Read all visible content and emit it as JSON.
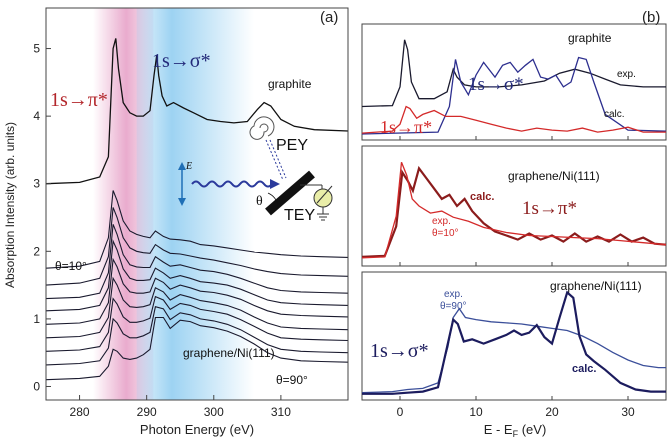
{
  "colors": {
    "dark": "#1a1a2e",
    "navy": "#23226a",
    "blue_exp": "#3b4f9a",
    "red": "#d42a2a",
    "darkred": "#8b1c1c",
    "pink": "#e7a2c8",
    "sky": "#8ccbf0",
    "gray_axis": "#444444",
    "grid": "#888888"
  },
  "chart_data": [
    {
      "id": "a",
      "type": "line",
      "panel_label": "(a)",
      "xlabel": "Photon Energy (eV)",
      "ylabel": "Absorption Intensity (arb. units)",
      "xlim": [
        275,
        320
      ],
      "ylim": [
        -0.2,
        5.6
      ],
      "xticks": [
        280,
        290,
        300,
        310
      ],
      "yticks": [
        0,
        1,
        2,
        3,
        4,
        5
      ],
      "shaded_regions": [
        {
          "name": "pi-star-region",
          "x": [
            282.0,
            291.0
          ],
          "color": "#e7a2c8"
        },
        {
          "name": "sigma-star-region",
          "x": [
            288.5,
            306.0
          ],
          "color": "#8ccbf0"
        }
      ],
      "graphite_curve": {
        "name": "graphite",
        "x": [
          275,
          280,
          283,
          284.3,
          285.0,
          285.4,
          285.8,
          286.5,
          287.5,
          288.5,
          289.5,
          290.5,
          291.1,
          291.5,
          291.8,
          292.3,
          293.0,
          294.0,
          295.5,
          297.0,
          299.0,
          301.0,
          303.0,
          305.0,
          306.5,
          307.5,
          308.5,
          310.0,
          312.0,
          315.0,
          320.0
        ],
        "y": [
          3.0,
          3.02,
          3.1,
          3.4,
          5.0,
          5.15,
          4.7,
          4.2,
          4.05,
          4.0,
          4.0,
          4.08,
          4.6,
          4.9,
          4.6,
          4.3,
          4.15,
          4.2,
          4.12,
          4.05,
          3.95,
          3.92,
          3.9,
          3.92,
          4.1,
          4.2,
          4.15,
          3.95,
          3.85,
          3.8,
          3.78
        ]
      },
      "series_x": [
        275,
        280,
        283,
        284.3,
        285.0,
        285.6,
        286.5,
        287.5,
        288.5,
        289.5,
        290.5,
        291.3,
        292.5,
        293.5,
        295.0,
        296.5,
        298.0,
        300.0,
        302.0,
        304.0,
        306.0,
        308.0,
        310.0,
        313.0,
        316.0,
        320.0
      ],
      "angle_series": [
        {
          "name": "theta-10",
          "y": [
            1.75,
            1.78,
            1.85,
            2.2,
            2.9,
            2.75,
            2.45,
            2.3,
            2.25,
            2.22,
            2.2,
            2.3,
            2.22,
            2.18,
            2.17,
            2.15,
            2.1,
            2.08,
            2.05,
            2.02,
            1.99,
            1.97,
            1.95,
            1.93,
            1.92,
            1.91
          ]
        },
        {
          "name": "theta-20",
          "y": [
            1.5,
            1.53,
            1.6,
            1.92,
            2.65,
            2.5,
            2.2,
            2.05,
            2.0,
            1.98,
            1.97,
            2.1,
            2.02,
            1.97,
            1.96,
            1.93,
            1.9,
            1.87,
            1.83,
            1.79,
            1.74,
            1.7,
            1.67,
            1.65,
            1.64,
            1.63
          ]
        },
        {
          "name": "theta-30",
          "y": [
            1.3,
            1.32,
            1.38,
            1.68,
            2.4,
            2.25,
            1.95,
            1.8,
            1.77,
            1.76,
            1.76,
            1.92,
            1.84,
            1.78,
            1.8,
            1.76,
            1.72,
            1.7,
            1.66,
            1.6,
            1.53,
            1.46,
            1.42,
            1.4,
            1.39,
            1.38
          ]
        },
        {
          "name": "theta-40",
          "y": [
            1.12,
            1.14,
            1.2,
            1.46,
            2.15,
            2.02,
            1.74,
            1.6,
            1.57,
            1.57,
            1.58,
            1.75,
            1.68,
            1.6,
            1.64,
            1.6,
            1.55,
            1.53,
            1.5,
            1.44,
            1.36,
            1.28,
            1.24,
            1.22,
            1.21,
            1.2
          ]
        },
        {
          "name": "theta-50",
          "y": [
            0.92,
            0.94,
            1.0,
            1.24,
            1.88,
            1.77,
            1.52,
            1.4,
            1.38,
            1.38,
            1.4,
            1.6,
            1.54,
            1.44,
            1.5,
            1.46,
            1.41,
            1.39,
            1.35,
            1.29,
            1.2,
            1.12,
            1.07,
            1.05,
            1.04,
            1.03
          ]
        },
        {
          "name": "theta-60",
          "y": [
            0.72,
            0.74,
            0.8,
            1.02,
            1.6,
            1.5,
            1.28,
            1.18,
            1.17,
            1.18,
            1.21,
            1.46,
            1.4,
            1.28,
            1.36,
            1.32,
            1.27,
            1.24,
            1.2,
            1.13,
            1.03,
            0.94,
            0.88,
            0.86,
            0.85,
            0.84
          ]
        },
        {
          "name": "theta-70",
          "y": [
            0.52,
            0.54,
            0.59,
            0.8,
            1.3,
            1.22,
            1.03,
            0.95,
            0.95,
            0.97,
            1.01,
            1.33,
            1.28,
            1.14,
            1.23,
            1.2,
            1.14,
            1.11,
            1.07,
            0.99,
            0.89,
            0.79,
            0.72,
            0.7,
            0.69,
            0.68
          ]
        },
        {
          "name": "theta-80",
          "y": [
            0.32,
            0.34,
            0.38,
            0.57,
            1.0,
            0.94,
            0.78,
            0.72,
            0.72,
            0.75,
            0.8,
            1.18,
            1.15,
            0.99,
            1.09,
            1.06,
            1.0,
            0.97,
            0.92,
            0.84,
            0.73,
            0.62,
            0.55,
            0.52,
            0.51,
            0.5
          ]
        },
        {
          "name": "theta-90",
          "y": [
            0.1,
            0.12,
            0.15,
            0.3,
            0.55,
            0.52,
            0.42,
            0.4,
            0.42,
            0.47,
            0.55,
            1.02,
            1.02,
            0.86,
            0.98,
            0.96,
            0.9,
            0.87,
            0.82,
            0.74,
            0.63,
            0.5,
            0.42,
            0.38,
            0.37,
            0.36
          ]
        }
      ],
      "labels": {
        "graphite": "graphite",
        "pi_transition": "1s→π*",
        "sigma_transition": "1s→σ*",
        "theta_start": "θ=10°",
        "theta_end": "θ=90°",
        "sample": "graphene/Ni(111)",
        "pey": "PEY",
        "tey": "TEY",
        "e_field": "E",
        "theta": "θ"
      }
    },
    {
      "id": "b",
      "type": "line",
      "panel_label": "(b)",
      "xlabel": "E - E",
      "xlabel_sub": "F",
      "xlabel_unit": " (eV)",
      "xlim": [
        -5,
        35
      ],
      "xticks": [
        0,
        10,
        20,
        30
      ],
      "subpanels": [
        {
          "name": "graphite-subpanel",
          "title": "graphite",
          "ylim": [
            0,
            1.1
          ],
          "series": [
            {
              "name": "exp",
              "label": "exp.",
              "color": "#1a1a2e",
              "x": [
                -5,
                -1,
                0,
                0.6,
                1.0,
                1.5,
                2.5,
                4.5,
                6.2,
                7.0,
                7.5,
                8.5,
                10,
                13,
                16,
                19,
                21,
                23,
                25,
                27,
                29,
                32,
                35
              ],
              "y": [
                0.3,
                0.31,
                0.5,
                0.98,
                0.88,
                0.55,
                0.38,
                0.38,
                0.45,
                0.68,
                0.6,
                0.52,
                0.5,
                0.5,
                0.52,
                0.56,
                0.64,
                0.68,
                0.64,
                0.58,
                0.52,
                0.5,
                0.5
              ]
            },
            {
              "name": "calc-sigma",
              "label": "calc.",
              "color": "#2d2f8f",
              "x": [
                -5,
                5,
                6.5,
                7.3,
                8.0,
                9.0,
                10.0,
                11.0,
                12.5,
                13.5,
                14.5,
                15.5,
                16.5,
                17.5,
                18.5,
                19.5,
                20.5,
                21.5,
                22.5,
                23.5,
                24.5,
                25.5,
                27,
                30,
                35
              ],
              "y": [
                0.02,
                0.04,
                0.3,
                0.78,
                0.55,
                0.42,
                0.62,
                0.75,
                0.6,
                0.72,
                0.75,
                0.65,
                0.72,
                0.78,
                0.6,
                0.58,
                0.62,
                0.5,
                0.55,
                0.8,
                0.78,
                0.55,
                0.22,
                0.06,
                0.05
              ]
            },
            {
              "name": "calc-pi",
              "label": "calc.",
              "color": "#d42a2a",
              "x": [
                -5,
                -1,
                0,
                0.8,
                1.3,
                2.2,
                3.0,
                4.5,
                6,
                8,
                10,
                12,
                14,
                16,
                18,
                20,
                22,
                24,
                26,
                28,
                30,
                32,
                35
              ],
              "y": [
                0.03,
                0.05,
                0.12,
                0.3,
                0.28,
                0.18,
                0.22,
                0.26,
                0.2,
                0.2,
                0.16,
                0.12,
                0.08,
                0.05,
                0.08,
                0.06,
                0.05,
                0.08,
                0.04,
                0.06,
                0.09,
                0.04,
                0.04
              ]
            }
          ],
          "labels": {
            "sigma": "1s→σ*",
            "pi": "1s→π*",
            "exp": "exp.",
            "calc": "calc."
          }
        },
        {
          "name": "graphene-pi-subpanel",
          "title": "graphene/Ni(111)",
          "ylim": [
            0,
            1.1
          ],
          "series": [
            {
              "name": "calc",
              "label": "calc.",
              "color": "#8b1c1c",
              "x": [
                -5,
                -2,
                -0.5,
                0.3,
                1.0,
                1.7,
                2.5,
                3.5,
                4.5,
                5.5,
                6.5,
                7.5,
                8.5,
                9.5,
                11,
                12.5,
                14,
                15.5,
                17,
                18.5,
                20,
                21.5,
                23,
                24.5,
                26,
                27.5,
                29,
                30.5,
                32,
                33.5,
                35
              ],
              "y": [
                0.05,
                0.06,
                0.35,
                0.88,
                0.8,
                0.7,
                0.92,
                0.82,
                0.72,
                0.62,
                0.66,
                0.55,
                0.62,
                0.5,
                0.38,
                0.3,
                0.26,
                0.22,
                0.28,
                0.22,
                0.26,
                0.2,
                0.28,
                0.2,
                0.25,
                0.2,
                0.27,
                0.2,
                0.24,
                0.18,
                0.17
              ]
            },
            {
              "name": "exp",
              "label": "exp.",
              "color": "#d42a2a",
              "x": [
                -5,
                -2,
                -0.5,
                0.2,
                0.9,
                1.6,
                2.5,
                4.0,
                5.5,
                7.0,
                9.0,
                11,
                14,
                17,
                20,
                23,
                26,
                29,
                32,
                35
              ],
              "y": [
                0.04,
                0.05,
                0.45,
                0.98,
                0.85,
                0.62,
                0.55,
                0.48,
                0.5,
                0.44,
                0.4,
                0.34,
                0.29,
                0.26,
                0.25,
                0.24,
                0.23,
                0.21,
                0.19,
                0.17
              ]
            }
          ],
          "labels": {
            "pi": "1s→π*",
            "exp": "exp.",
            "theta": "θ=10°",
            "calc": "calc."
          }
        },
        {
          "name": "graphene-sigma-subpanel",
          "title": "graphene/Ni(111)",
          "ylim": [
            0,
            1.1
          ],
          "series": [
            {
              "name": "exp",
              "label": "exp.",
              "color": "#3b4f9a",
              "x": [
                -5,
                -1,
                1,
                3,
                5,
                6.3,
                7.0,
                7.8,
                8.6,
                10,
                12,
                14,
                16,
                18,
                20,
                22,
                24,
                26,
                28,
                30,
                32,
                34,
                35
              ],
              "y": [
                0.03,
                0.04,
                0.06,
                0.07,
                0.12,
                0.45,
                0.72,
                0.8,
                0.72,
                0.7,
                0.68,
                0.67,
                0.66,
                0.64,
                0.62,
                0.6,
                0.55,
                0.48,
                0.4,
                0.33,
                0.28,
                0.26,
                0.26
              ]
            },
            {
              "name": "calc",
              "label": "calc.",
              "color": "#1c1c5e",
              "x": [
                -5,
                -1,
                1,
                3,
                5,
                6.2,
                7.0,
                7.6,
                8.4,
                9.5,
                11,
                12.5,
                14,
                15,
                16,
                17,
                18,
                19,
                20,
                21,
                22,
                22.8,
                23.6,
                24.5,
                25.5,
                27,
                29,
                31,
                33,
                35
              ],
              "y": [
                0.02,
                0.02,
                0.03,
                0.04,
                0.08,
                0.45,
                0.7,
                0.66,
                0.5,
                0.52,
                0.48,
                0.52,
                0.56,
                0.6,
                0.56,
                0.58,
                0.65,
                0.54,
                0.48,
                0.72,
                0.95,
                0.9,
                0.55,
                0.38,
                0.32,
                0.24,
                0.12,
                0.06,
                0.04,
                0.04
              ]
            }
          ],
          "labels": {
            "sigma": "1s→σ*",
            "exp": "exp.",
            "theta": "θ=90°",
            "calc": "calc."
          }
        }
      ]
    }
  ]
}
